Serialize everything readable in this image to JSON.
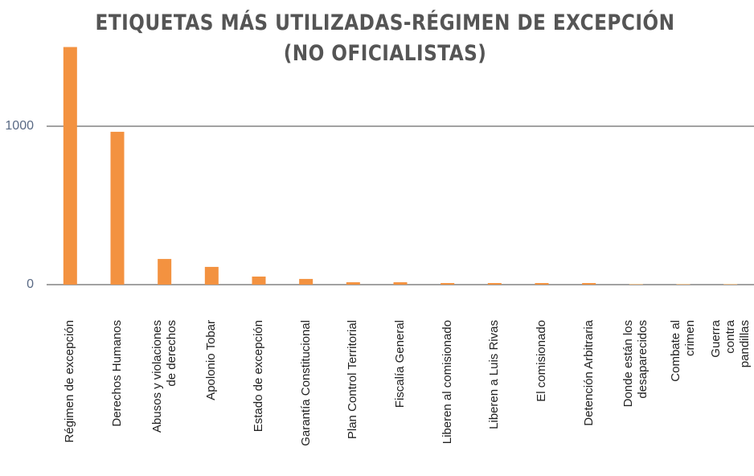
{
  "chart_data": {
    "type": "bar",
    "title": "ETIQUETAS MÁS UTILIZADAS-RÉGIMEN DE EXCEPCIÓN\n(NO OFICIALISTAS)",
    "categories": [
      "Régimen de excepción",
      "Derechos Humanos",
      "Abusos y violaciones\nde derechos",
      "Apolonio Tobar",
      "Estado de excepción",
      "Garantía Constitucional",
      "Plan Control Territorial",
      "Fiscalía General",
      "Liberen al comisionado",
      "Liberen a Luis Rivas",
      "El comisionado",
      "Detención Arbitraria",
      "Donde están los\ndesaparecidos",
      "Combate al crimen",
      "Guerra contra pandillas"
    ],
    "values": [
      1500,
      965,
      162,
      112,
      51,
      36,
      15,
      15,
      10,
      10,
      10,
      10,
      5,
      5,
      5
    ],
    "colors": [
      "#f39240",
      "#f39240",
      "#f39240",
      "#f39240",
      "#f39240",
      "#f39240",
      "#f39240",
      "#f39240",
      "#f39240",
      "#f39240",
      "#f39240",
      "#f39240",
      "#f8c593",
      "#f8c593",
      "#f8c593"
    ],
    "ylim": [
      0,
      1500
    ],
    "yticks": [
      0,
      1000
    ],
    "grid": true
  }
}
